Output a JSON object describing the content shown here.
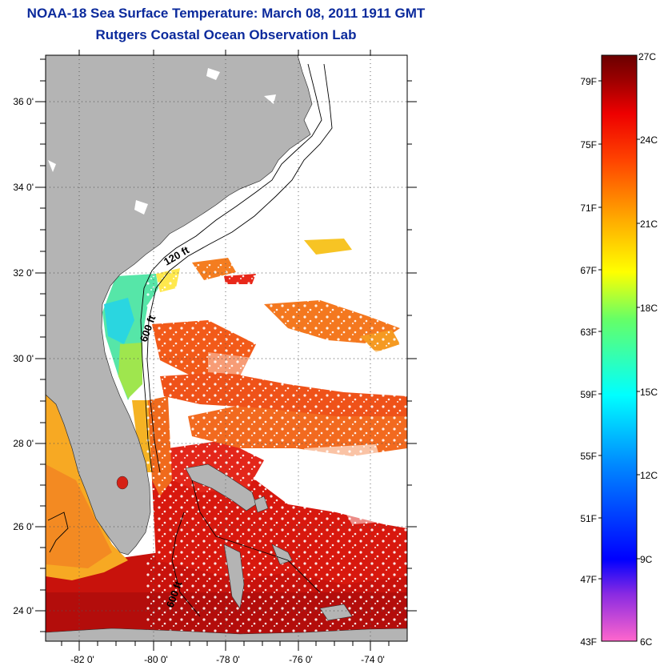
{
  "header": {
    "title": "NOAA-18 Sea Surface Temperature:  March 08, 2011 1911 GMT",
    "subtitle": "Rutgers Coastal Ocean Observation Lab"
  },
  "map": {
    "lat_labels": [
      "36 0'",
      "34 0'",
      "32 0'",
      "30 0'",
      "28 0'",
      "26 0'",
      "24 0'"
    ],
    "lon_labels": [
      "-82 0'",
      "-80 0'",
      "-78 0'",
      "-76 0'",
      "-74 0'"
    ],
    "contour_labels": [
      "120 ft",
      "600 ft",
      "600 ft"
    ],
    "colors": {
      "land": "#b4b4b4",
      "no_data": "#ffffff",
      "grid": "#555555"
    }
  },
  "colorbar": {
    "f_labels": [
      "79F",
      "75F",
      "71F",
      "67F",
      "63F",
      "59F",
      "55F",
      "51F",
      "47F",
      "43F"
    ],
    "c_labels": [
      "27C",
      "24C",
      "21C",
      "18C",
      "15C",
      "12C",
      "9C",
      "6C"
    ],
    "stops": [
      "#ff66cc",
      "#8a2be2",
      "#0000ff",
      "#0088ff",
      "#00ffff",
      "#66ff66",
      "#ffff00",
      "#ffaa00",
      "#ff4400",
      "#ee0000",
      "#990000",
      "#6b0000"
    ]
  }
}
